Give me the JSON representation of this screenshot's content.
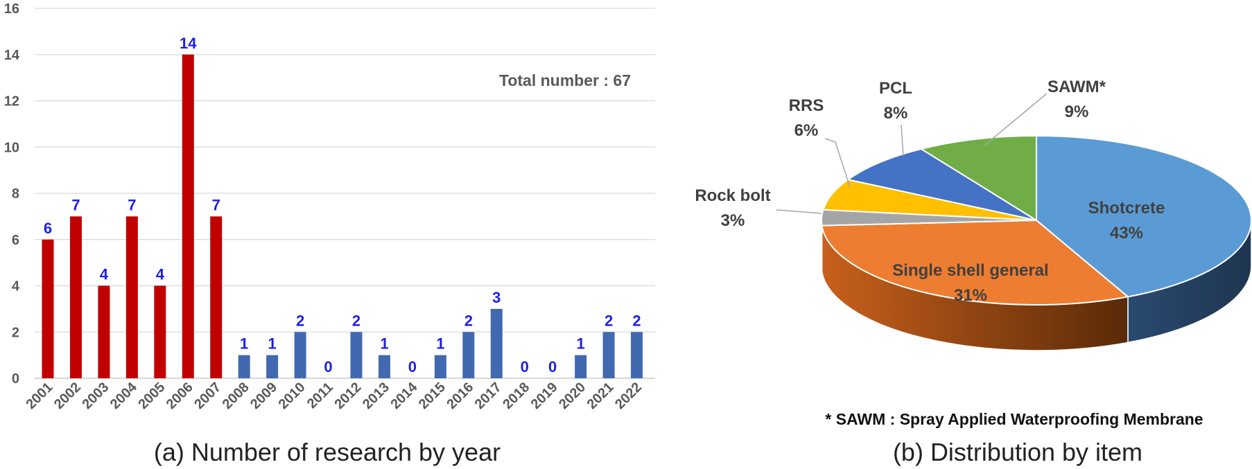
{
  "chart_data": [
    {
      "type": "bar",
      "title": "",
      "caption": "(a) Number of research by year",
      "annotation": "Total number : 67",
      "xlabel": "",
      "ylabel": "",
      "ylim": [
        0,
        16
      ],
      "yticks": [
        "0",
        "2",
        "4",
        "6",
        "8",
        "10",
        "12",
        "14",
        "16"
      ],
      "grid": true,
      "categories": [
        "2001",
        "2002",
        "2003",
        "2004",
        "2005",
        "2006",
        "2007",
        "2008",
        "2009",
        "2010",
        "2011",
        "2012",
        "2013",
        "2014",
        "2015",
        "2016",
        "2017",
        "2018",
        "2019",
        "2020",
        "2021",
        "2022"
      ],
      "values": [
        6,
        7,
        4,
        7,
        4,
        14,
        7,
        1,
        1,
        2,
        0,
        2,
        1,
        0,
        1,
        2,
        3,
        0,
        0,
        1,
        2,
        2
      ],
      "value_labels": [
        "6",
        "7",
        "4",
        "7",
        "4",
        "14",
        "7",
        "1",
        "1",
        "2",
        "0",
        "2",
        "1",
        "0",
        "1",
        "2",
        "3",
        "0",
        "0",
        "1",
        "2",
        "2"
      ],
      "colors": {
        "2001-2007": "#c00000",
        "2008-2022": "#4169b0",
        "data_label": "#1f1fe6"
      }
    },
    {
      "type": "pie",
      "title": "",
      "caption": "(b) Distribution by item",
      "footnote": "* SAWM : Spray Applied Waterproofing Membrane",
      "slices": [
        {
          "label": "Shotcrete",
          "value": 43,
          "pct_label": "43%",
          "color": "#5b9bd5"
        },
        {
          "label": "Single shell general",
          "value": 31,
          "pct_label": "31%",
          "color": "#ed7d31"
        },
        {
          "label": "Rock bolt",
          "value": 3,
          "pct_label": "3%",
          "color": "#a5a5a5"
        },
        {
          "label": "RRS",
          "value": 6,
          "pct_label": "6%",
          "color": "#ffc000"
        },
        {
          "label": "PCL",
          "value": 8,
          "pct_label": "8%",
          "color": "#4472c4"
        },
        {
          "label": "SAWM*",
          "value": 9,
          "pct_label": "9%",
          "color": "#70ad47"
        }
      ]
    }
  ]
}
